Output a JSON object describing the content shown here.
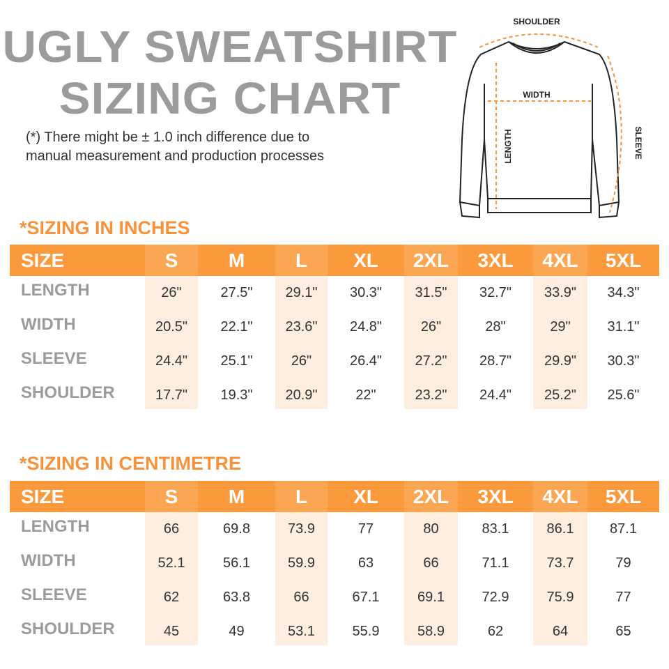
{
  "title_line1": "UGLY SWEATSHIRT",
  "title_line2": "SIZING CHART",
  "note_line1": "(*) There might be ± 1.0 inch difference due to",
  "note_line2": "manual measurement and production processes",
  "diagram": {
    "shoulder": "SHOULDER",
    "width": "WIDTH",
    "length": "LENGTH",
    "sleeve": "SLEEVE"
  },
  "colors": {
    "accent": "#fb9a3c",
    "section_title": "#f7923a",
    "shade": "#fdeee0",
    "label_gray": "#9b9b9b"
  },
  "tables": [
    {
      "title": "*SIZING IN INCHES",
      "header": "SIZE",
      "sizes": [
        "S",
        "M",
        "L",
        "XL",
        "2XL",
        "3XL",
        "4XL",
        "5XL"
      ],
      "rows": [
        {
          "label": "LENGTH",
          "values": [
            "26\"",
            "27.5\"",
            "29.1\"",
            "30.3\"",
            "31.5\"",
            "32.7\"",
            "33.9\"",
            "34.3\""
          ]
        },
        {
          "label": "WIDTH",
          "values": [
            "20.5\"",
            "22.1\"",
            "23.6\"",
            "24.8\"",
            "26\"",
            "28\"",
            "29\"",
            "31.1\""
          ]
        },
        {
          "label": "SLEEVE",
          "values": [
            "24.4\"",
            "25.1\"",
            "26\"",
            "26.4\"",
            "27.2\"",
            "28.7\"",
            "29.9\"",
            "30.3\""
          ]
        },
        {
          "label": "SHOULDER",
          "values": [
            "17.7\"",
            "19.3\"",
            "20.9\"",
            "22\"",
            "23.2\"",
            "24.4\"",
            "25.2\"",
            "25.6\""
          ]
        }
      ]
    },
    {
      "title": "*SIZING IN CENTIMETRE",
      "header": "SIZE",
      "sizes": [
        "S",
        "M",
        "L",
        "XL",
        "2XL",
        "3XL",
        "4XL",
        "5XL"
      ],
      "rows": [
        {
          "label": "LENGTH",
          "values": [
            "66",
            "69.8",
            "73.9",
            "77",
            "80",
            "83.1",
            "86.1",
            "87.1"
          ]
        },
        {
          "label": "WIDTH",
          "values": [
            "52.1",
            "56.1",
            "59.9",
            "63",
            "66",
            "71.1",
            "73.7",
            "79"
          ]
        },
        {
          "label": "SLEEVE",
          "values": [
            "62",
            "63.8",
            "66",
            "67.1",
            "69.1",
            "72.9",
            "75.9",
            "77"
          ]
        },
        {
          "label": "SHOULDER",
          "values": [
            "45",
            "49",
            "53.1",
            "55.9",
            "58.9",
            "62",
            "64",
            "65"
          ]
        }
      ]
    }
  ]
}
